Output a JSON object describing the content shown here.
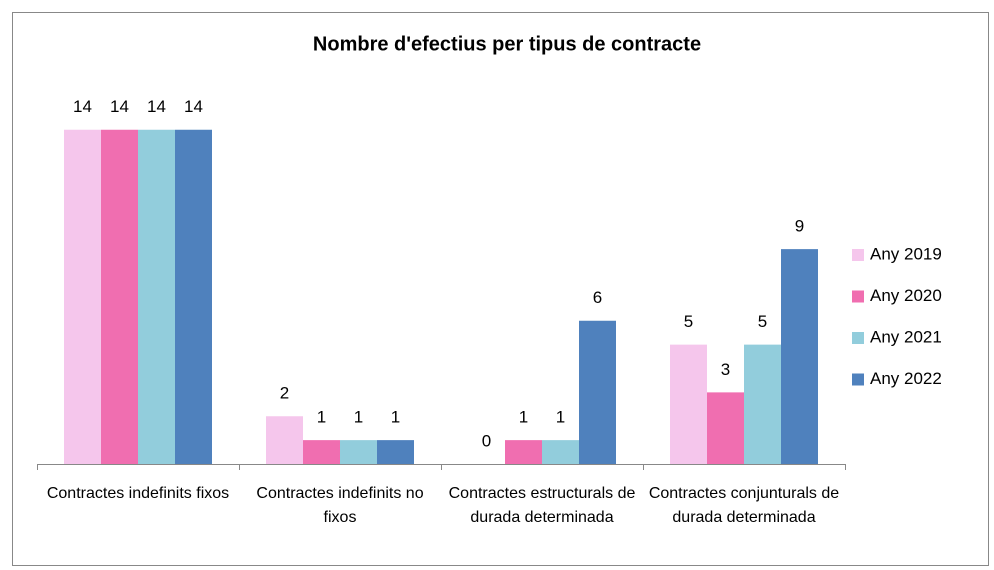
{
  "chart_data": {
    "type": "bar",
    "title": "Nombre d'efectius per tipus de contracte",
    "categories": [
      "Contractes indefinits fixos",
      "Contractes indefinits no fixos",
      "Contractes estructurals de durada determinada",
      "Contractes conjunturals de durada determinada"
    ],
    "series": [
      {
        "name": "Any 2019",
        "color": "#f5c6ec",
        "values": [
          14,
          2,
          0,
          5
        ]
      },
      {
        "name": "Any 2020",
        "color": "#f06eb0",
        "values": [
          14,
          1,
          1,
          3
        ]
      },
      {
        "name": "Any 2021",
        "color": "#92cddc",
        "values": [
          14,
          1,
          1,
          5
        ]
      },
      {
        "name": "Any 2022",
        "color": "#4f81bd",
        "values": [
          14,
          1,
          6,
          9
        ]
      }
    ],
    "ylim": [
      0,
      16
    ],
    "legend": "right"
  }
}
